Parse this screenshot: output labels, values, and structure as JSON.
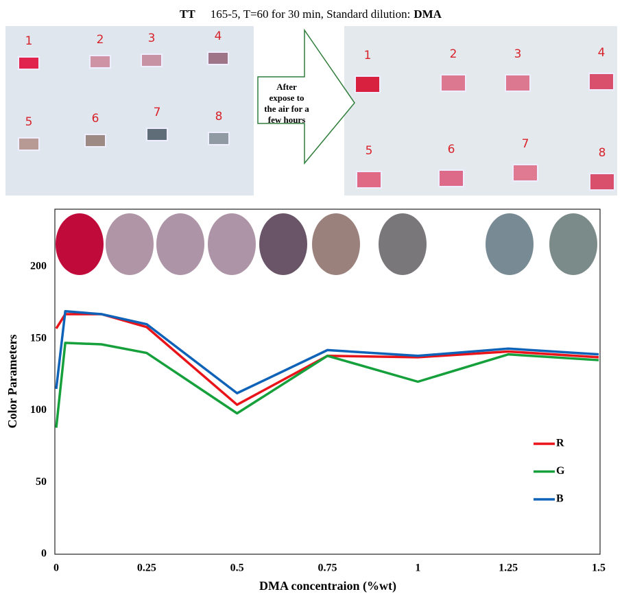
{
  "header": {
    "bold_lead": "TT",
    "text": "165-5, T=60 for 30 min, Standard dilution:",
    "bold_tail": "DMA"
  },
  "photos": {
    "before_labels": [
      "1",
      "2",
      "3",
      "4",
      "5",
      "6",
      "7",
      "8"
    ],
    "after_labels": [
      "1",
      "2",
      "3",
      "4",
      "5",
      "6",
      "7",
      "8"
    ],
    "arrow_lines": [
      "After",
      "expose to",
      "the air for a",
      "few hours"
    ]
  },
  "chart_data": {
    "type": "line",
    "x_label": "DMA concentraion (%wt)",
    "y_label": "Color Parameters",
    "x": [
      0,
      0.025,
      0.125,
      0.25,
      0.5,
      0.75,
      1,
      1.25,
      1.5
    ],
    "series": [
      {
        "name": "R",
        "color": "#e8141a",
        "values": [
          157,
          167,
          167,
          158,
          104,
          138,
          137,
          141,
          137
        ]
      },
      {
        "name": "G",
        "color": "#16a03c",
        "values": [
          88,
          147,
          146,
          140,
          98,
          138,
          120,
          139,
          135
        ]
      },
      {
        "name": "B",
        "color": "#0e62b8",
        "values": [
          115,
          169,
          167,
          160,
          112,
          142,
          138,
          143,
          139
        ]
      }
    ],
    "xlim": [
      0,
      1.5
    ],
    "xticks": [
      0,
      0.25,
      0.5,
      0.75,
      1,
      1.25,
      1.5
    ],
    "ylim": [
      0,
      240
    ],
    "yticks": [
      0,
      50,
      100,
      150,
      200
    ],
    "grid": false,
    "legend": "right"
  }
}
